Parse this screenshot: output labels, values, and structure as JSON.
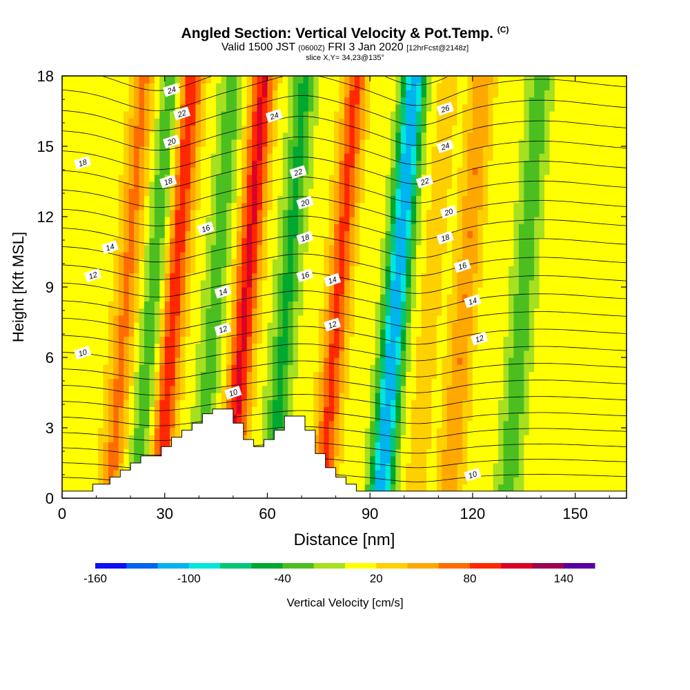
{
  "header": {
    "title": "Angled Section: Vertical Velocity & Pot.Temp.",
    "title_units": "(C)",
    "valid_prefix": "Valid 1500 JST",
    "valid_utc": "(0600Z)",
    "valid_date": "FRI 3 Jan 2020",
    "forecast_tag": "[12hrFcst@2148z]",
    "slice_info": "slice X,Y= 34,23@135°"
  },
  "chart_data": {
    "type": "heatmap",
    "xlabel": "Distance [nm]",
    "ylabel": "Height [Kft MSL]",
    "xlim": [
      0,
      165
    ],
    "ylim": [
      0,
      18
    ],
    "x_ticks": [
      0,
      30,
      60,
      90,
      120,
      150
    ],
    "y_ticks": [
      0,
      3,
      6,
      9,
      12,
      15,
      18
    ],
    "colorbar": {
      "title": "Vertical Velocity [cm/s]",
      "range": [
        -160,
        160
      ],
      "step": 20,
      "tick_labels": [
        -160,
        -100,
        -40,
        20,
        80,
        140
      ],
      "colors": [
        "#1010f0",
        "#0064f0",
        "#00b4f0",
        "#00e6dc",
        "#00c878",
        "#00a830",
        "#4cbf20",
        "#a6e020",
        "#ffff00",
        "#ffd000",
        "#ffa800",
        "#ff6c00",
        "#ff2800",
        "#dc0028",
        "#a00050",
        "#5a00a0"
      ]
    },
    "velocity_field": {
      "background_cm_s": 10,
      "features": [
        {
          "x": 19,
          "v": 55
        },
        {
          "x": 27,
          "v": -45
        },
        {
          "x": 33,
          "v": 85
        },
        {
          "x": 45,
          "v": -40
        },
        {
          "x": 54,
          "v": 95
        },
        {
          "x": 66,
          "v": -55
        },
        {
          "x": 81,
          "v": 75
        },
        {
          "x": 98,
          "v": -130
        },
        {
          "x": 108,
          "v": 20
        },
        {
          "x": 118,
          "v": 50
        },
        {
          "x": 135,
          "v": -45
        }
      ]
    },
    "theta_contours": {
      "units": "C",
      "labeled_levels": [
        10,
        12,
        14,
        16,
        18,
        20,
        22,
        24,
        26
      ],
      "labels": [
        {
          "text": "18",
          "x": 6,
          "y": 14.3
        },
        {
          "text": "24",
          "x": 32,
          "y": 17.4
        },
        {
          "text": "22",
          "x": 35,
          "y": 16.4
        },
        {
          "text": "20",
          "x": 32,
          "y": 15.2
        },
        {
          "text": "18",
          "x": 31,
          "y": 13.5
        },
        {
          "text": "16",
          "x": 42,
          "y": 11.5
        },
        {
          "text": "14",
          "x": 14,
          "y": 10.7
        },
        {
          "text": "12",
          "x": 9,
          "y": 9.5
        },
        {
          "text": "14",
          "x": 47,
          "y": 8.8
        },
        {
          "text": "12",
          "x": 47,
          "y": 7.2
        },
        {
          "text": "10",
          "x": 6,
          "y": 6.2
        },
        {
          "text": "10",
          "x": 50,
          "y": 4.5
        },
        {
          "text": "24",
          "x": 62,
          "y": 16.3
        },
        {
          "text": "22",
          "x": 69,
          "y": 13.9
        },
        {
          "text": "20",
          "x": 71,
          "y": 12.6
        },
        {
          "text": "18",
          "x": 71,
          "y": 11.1
        },
        {
          "text": "16",
          "x": 71,
          "y": 9.5
        },
        {
          "text": "14",
          "x": 79,
          "y": 9.3
        },
        {
          "text": "12",
          "x": 79,
          "y": 7.4
        },
        {
          "text": "26",
          "x": 112,
          "y": 16.6
        },
        {
          "text": "24",
          "x": 112,
          "y": 15.0
        },
        {
          "text": "22",
          "x": 106,
          "y": 13.5
        },
        {
          "text": "20",
          "x": 113,
          "y": 12.2
        },
        {
          "text": "18",
          "x": 112,
          "y": 11.1
        },
        {
          "text": "16",
          "x": 117,
          "y": 9.9
        },
        {
          "text": "14",
          "x": 120,
          "y": 8.4
        },
        {
          "text": "12",
          "x": 122,
          "y": 6.8
        },
        {
          "text": "10",
          "x": 120,
          "y": 1.0
        }
      ]
    },
    "terrain_kft": [
      {
        "x": 0,
        "h": 0.3
      },
      {
        "x": 9,
        "h": 0.3
      },
      {
        "x": 9,
        "h": 0.6
      },
      {
        "x": 14,
        "h": 0.6
      },
      {
        "x": 14,
        "h": 0.9
      },
      {
        "x": 17,
        "h": 0.9
      },
      {
        "x": 17,
        "h": 1.2
      },
      {
        "x": 20,
        "h": 1.2
      },
      {
        "x": 20,
        "h": 1.5
      },
      {
        "x": 23,
        "h": 1.5
      },
      {
        "x": 23,
        "h": 1.8
      },
      {
        "x": 29,
        "h": 1.8
      },
      {
        "x": 29,
        "h": 2.2
      },
      {
        "x": 32,
        "h": 2.2
      },
      {
        "x": 32,
        "h": 2.6
      },
      {
        "x": 35,
        "h": 2.6
      },
      {
        "x": 35,
        "h": 2.9
      },
      {
        "x": 38,
        "h": 2.9
      },
      {
        "x": 38,
        "h": 3.2
      },
      {
        "x": 41,
        "h": 3.2
      },
      {
        "x": 41,
        "h": 3.6
      },
      {
        "x": 44,
        "h": 3.6
      },
      {
        "x": 44,
        "h": 3.8
      },
      {
        "x": 50,
        "h": 3.8
      },
      {
        "x": 50,
        "h": 3.2
      },
      {
        "x": 53,
        "h": 3.2
      },
      {
        "x": 53,
        "h": 2.5
      },
      {
        "x": 56,
        "h": 2.5
      },
      {
        "x": 56,
        "h": 2.2
      },
      {
        "x": 59,
        "h": 2.2
      },
      {
        "x": 59,
        "h": 2.5
      },
      {
        "x": 62,
        "h": 2.5
      },
      {
        "x": 62,
        "h": 2.9
      },
      {
        "x": 65,
        "h": 2.9
      },
      {
        "x": 65,
        "h": 3.5
      },
      {
        "x": 71,
        "h": 3.5
      },
      {
        "x": 71,
        "h": 2.9
      },
      {
        "x": 74,
        "h": 2.9
      },
      {
        "x": 74,
        "h": 1.9
      },
      {
        "x": 77,
        "h": 1.9
      },
      {
        "x": 77,
        "h": 1.3
      },
      {
        "x": 80,
        "h": 1.3
      },
      {
        "x": 80,
        "h": 0.9
      },
      {
        "x": 83,
        "h": 0.9
      },
      {
        "x": 83,
        "h": 0.6
      },
      {
        "x": 86,
        "h": 0.6
      },
      {
        "x": 86,
        "h": 0.3
      },
      {
        "x": 165,
        "h": 0.3
      }
    ]
  }
}
